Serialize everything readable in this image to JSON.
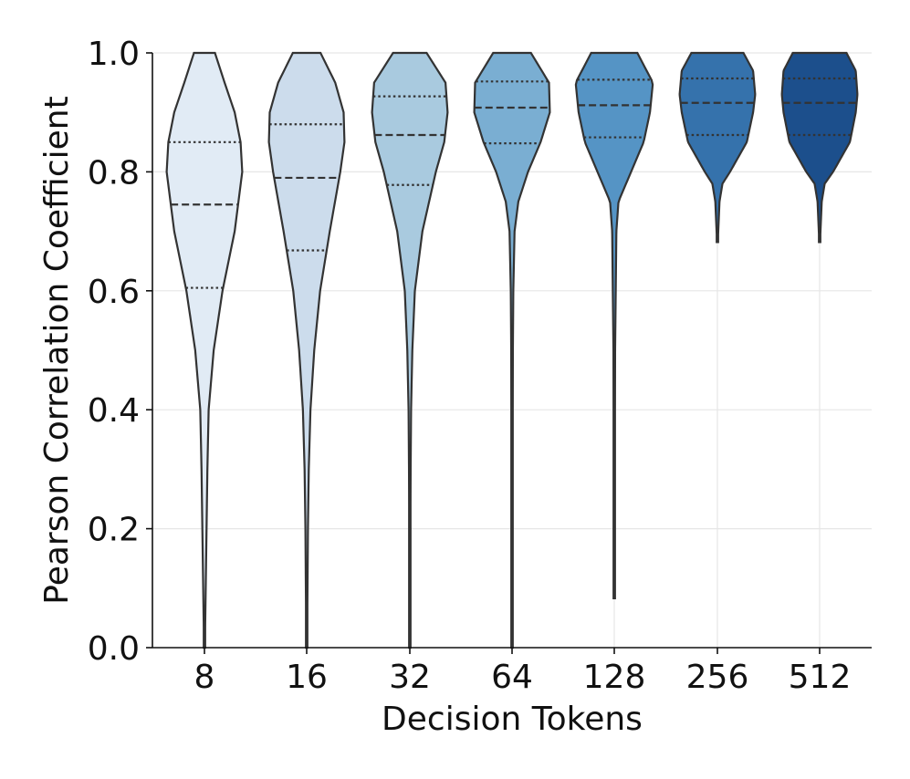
{
  "chart_data": {
    "type": "violin",
    "xlabel": "Decision Tokens",
    "ylabel": "Pearson Correlation Coefficient",
    "ylim": [
      0.0,
      1.0
    ],
    "yticks": [
      "0.0",
      "0.2",
      "0.4",
      "0.6",
      "0.8",
      "1.0"
    ],
    "grid": true,
    "categories": [
      "8",
      "16",
      "32",
      "64",
      "128",
      "256",
      "512"
    ],
    "series": [
      {
        "name": "8",
        "color": "#e1ebf5",
        "min": 0.0,
        "max": 1.0,
        "q1": 0.605,
        "median": 0.745,
        "q3": 0.85,
        "profile": [
          [
            0.0,
            0.01
          ],
          [
            0.1,
            0.03
          ],
          [
            0.2,
            0.05
          ],
          [
            0.3,
            0.07
          ],
          [
            0.4,
            0.1
          ],
          [
            0.5,
            0.22
          ],
          [
            0.6,
            0.43
          ],
          [
            0.7,
            0.72
          ],
          [
            0.8,
            0.9
          ],
          [
            0.85,
            0.86
          ],
          [
            0.9,
            0.72
          ],
          [
            0.95,
            0.48
          ],
          [
            1.0,
            0.25
          ]
        ]
      },
      {
        "name": "16",
        "color": "#ccdcec",
        "min": 0.0,
        "max": 1.0,
        "q1": 0.668,
        "median": 0.79,
        "q3": 0.88,
        "profile": [
          [
            0.0,
            0.01
          ],
          [
            0.1,
            0.02
          ],
          [
            0.2,
            0.03
          ],
          [
            0.3,
            0.05
          ],
          [
            0.4,
            0.09
          ],
          [
            0.5,
            0.18
          ],
          [
            0.6,
            0.32
          ],
          [
            0.7,
            0.55
          ],
          [
            0.8,
            0.8
          ],
          [
            0.85,
            0.9
          ],
          [
            0.9,
            0.88
          ],
          [
            0.95,
            0.68
          ],
          [
            1.0,
            0.33
          ]
        ]
      },
      {
        "name": "32",
        "color": "#a9cadf",
        "min": 0.0,
        "max": 1.0,
        "q1": 0.778,
        "median": 0.862,
        "q3": 0.927,
        "profile": [
          [
            0.0,
            0.01
          ],
          [
            0.2,
            0.015
          ],
          [
            0.3,
            0.02
          ],
          [
            0.4,
            0.03
          ],
          [
            0.5,
            0.06
          ],
          [
            0.6,
            0.12
          ],
          [
            0.7,
            0.3
          ],
          [
            0.8,
            0.62
          ],
          [
            0.85,
            0.82
          ],
          [
            0.9,
            0.9
          ],
          [
            0.95,
            0.85
          ],
          [
            1.0,
            0.4
          ]
        ]
      },
      {
        "name": "64",
        "color": "#7aaed2",
        "min": 0.0,
        "max": 1.0,
        "q1": 0.848,
        "median": 0.908,
        "q3": 0.952,
        "profile": [
          [
            0.0,
            0.01
          ],
          [
            0.3,
            0.015
          ],
          [
            0.5,
            0.02
          ],
          [
            0.6,
            0.03
          ],
          [
            0.7,
            0.06
          ],
          [
            0.75,
            0.15
          ],
          [
            0.8,
            0.38
          ],
          [
            0.85,
            0.68
          ],
          [
            0.9,
            0.9
          ],
          [
            0.95,
            0.88
          ],
          [
            1.0,
            0.45
          ]
        ]
      },
      {
        "name": "128",
        "color": "#5594c5",
        "min": 0.083,
        "max": 1.0,
        "q1": 0.858,
        "median": 0.912,
        "q3": 0.955,
        "profile": [
          [
            0.083,
            0.01
          ],
          [
            0.3,
            0.015
          ],
          [
            0.5,
            0.02
          ],
          [
            0.7,
            0.05
          ],
          [
            0.75,
            0.1
          ],
          [
            0.8,
            0.4
          ],
          [
            0.85,
            0.7
          ],
          [
            0.9,
            0.85
          ],
          [
            0.95,
            0.92
          ],
          [
            1.0,
            0.55
          ]
        ]
      },
      {
        "name": "256",
        "color": "#3572ac",
        "min": 0.682,
        "max": 1.0,
        "q1": 0.862,
        "median": 0.916,
        "q3": 0.957,
        "profile": [
          [
            0.682,
            0.01
          ],
          [
            0.7,
            0.02
          ],
          [
            0.75,
            0.05
          ],
          [
            0.78,
            0.12
          ],
          [
            0.8,
            0.3
          ],
          [
            0.85,
            0.7
          ],
          [
            0.9,
            0.85
          ],
          [
            0.93,
            0.9
          ],
          [
            0.97,
            0.85
          ],
          [
            1.0,
            0.62
          ]
        ]
      },
      {
        "name": "512",
        "color": "#1c4f8c",
        "min": 0.682,
        "max": 1.0,
        "q1": 0.862,
        "median": 0.916,
        "q3": 0.957,
        "profile": [
          [
            0.682,
            0.01
          ],
          [
            0.7,
            0.02
          ],
          [
            0.75,
            0.05
          ],
          [
            0.78,
            0.12
          ],
          [
            0.8,
            0.32
          ],
          [
            0.85,
            0.72
          ],
          [
            0.9,
            0.86
          ],
          [
            0.93,
            0.9
          ],
          [
            0.97,
            0.86
          ],
          [
            1.0,
            0.64
          ]
        ]
      }
    ]
  }
}
